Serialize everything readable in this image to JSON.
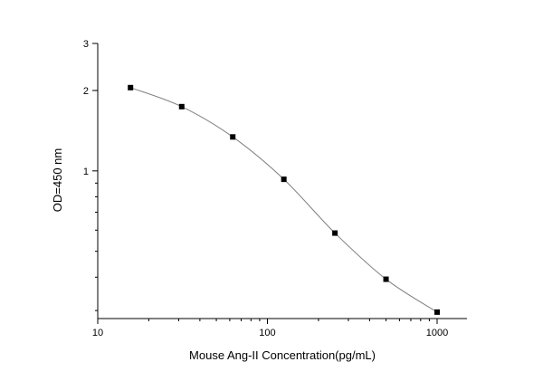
{
  "chart_data": {
    "type": "line",
    "title": "",
    "xlabel": "Mouse Ang-II  Concentration(pg/mL)",
    "ylabel": "OD=450 nm",
    "x_scale": "log",
    "y_scale": "log",
    "xlim": [
      10,
      1500
    ],
    "ylim": [
      0.28,
      3
    ],
    "x_ticks": [
      {
        "value": 10,
        "label": "10"
      },
      {
        "value": 100,
        "label": "100"
      },
      {
        "value": 1000,
        "label": "1000"
      }
    ],
    "y_ticks": [
      {
        "value": 1,
        "label": "1"
      },
      {
        "value": 2,
        "label": "2"
      },
      {
        "value": 3,
        "label": "3"
      }
    ],
    "grid": false,
    "series": [
      {
        "x": [
          15.6,
          31.25,
          62.5,
          125,
          250,
          500,
          1000
        ],
        "y": [
          2.05,
          1.74,
          1.34,
          0.93,
          0.585,
          0.393,
          0.296
        ]
      }
    ],
    "colors": {
      "line": "#808080",
      "marker": "#000000",
      "axis": "#000000"
    }
  }
}
